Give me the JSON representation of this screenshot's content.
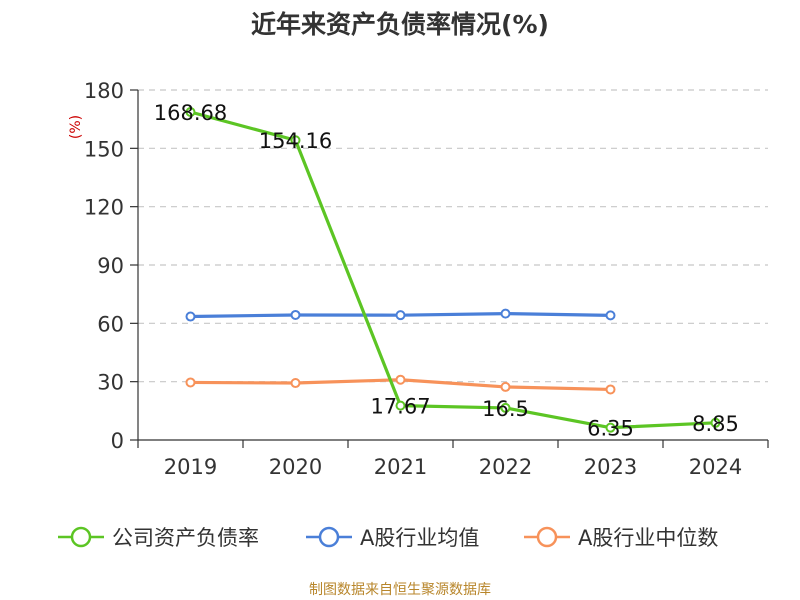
{
  "chart_data": {
    "type": "line",
    "title": "近年来资产负债率情况(%)",
    "ylabel": "(%)",
    "xlabel": "",
    "categories": [
      "2019",
      "2020",
      "2021",
      "2022",
      "2023",
      "2024"
    ],
    "ylim": [
      0,
      180
    ],
    "yticks": [
      0,
      30,
      60,
      90,
      120,
      150,
      180
    ],
    "grid": "horizontal-dashed",
    "legend_position": "bottom",
    "series": [
      {
        "name": "公司资产负债率",
        "color": "#5cc524",
        "values": [
          168.68,
          154.16,
          17.67,
          16.5,
          6.35,
          8.85
        ],
        "labels": [
          "168.68",
          "154.16",
          "17.67",
          "16.5",
          "6.35",
          "8.85"
        ]
      },
      {
        "name": "A股行业均值",
        "color": "#4a7fd8",
        "values": [
          63.5,
          64.3,
          64.2,
          65.0,
          64.1,
          null
        ]
      },
      {
        "name": "A股行业中位数",
        "color": "#f7925a",
        "values": [
          29.6,
          29.3,
          31.0,
          27.3,
          26.0,
          null
        ]
      }
    ],
    "source": "制图数据来自恒生聚源数据库"
  }
}
